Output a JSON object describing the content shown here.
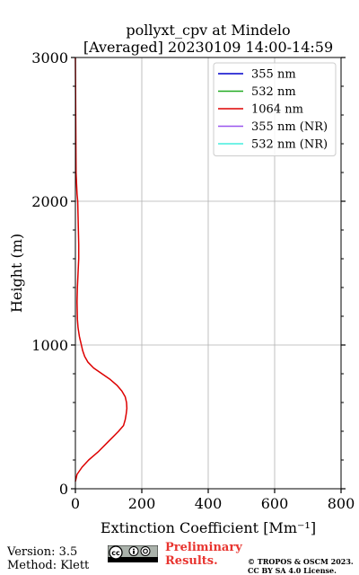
{
  "chart_data": {
    "type": "line",
    "title": "pollyxt_cpv at Mindelo",
    "subtitle": "[Averaged] 20230109 14:00-14:59",
    "xlabel": "Extinction Coefficient [Mm⁻¹]",
    "ylabel": "Height (m)",
    "xlim": [
      0,
      800
    ],
    "ylim": [
      0,
      3000
    ],
    "xticks": [
      0,
      200,
      400,
      600,
      800
    ],
    "yticks": [
      0,
      1000,
      2000,
      3000
    ],
    "grid": true,
    "legend_position": "top-right",
    "series": [
      {
        "name": "355 nm",
        "color": "#0000cc",
        "x": [],
        "y": []
      },
      {
        "name": "532 nm",
        "color": "#22aa22",
        "x": [],
        "y": []
      },
      {
        "name": "1064 nm",
        "color": "#dd0000",
        "x": [
          0,
          5,
          20,
          40,
          70,
          100,
          130,
          145,
          150,
          153,
          155,
          154,
          150,
          140,
          125,
          105,
          80,
          55,
          38,
          28,
          22,
          18,
          12,
          8,
          6,
          5,
          6,
          8,
          10,
          10,
          9,
          8,
          7,
          5,
          4,
          2,
          0
        ],
        "y": [
          50,
          100,
          150,
          200,
          260,
          330,
          400,
          440,
          480,
          520,
          560,
          600,
          640,
          680,
          720,
          760,
          800,
          840,
          880,
          920,
          960,
          1000,
          1060,
          1120,
          1180,
          1300,
          1400,
          1500,
          1600,
          1700,
          1800,
          1900,
          2000,
          2050,
          2100,
          2200,
          3000
        ]
      },
      {
        "name": "355 nm (NR)",
        "color": "#9955ee",
        "x": [],
        "y": []
      },
      {
        "name": "532 nm (NR)",
        "color": "#44eedd",
        "x": [],
        "y": []
      }
    ]
  },
  "footer": {
    "version": "Version: 3.5",
    "method": "Method: Klett",
    "preliminary_line1": "Preliminary",
    "preliminary_line2": "Results.",
    "copyright_line1": "© TROPOS & OSCM 2023.",
    "copyright_line2": "CC BY SA 4.0 License."
  },
  "icons": {
    "license": "cc-by-sa-icon"
  }
}
